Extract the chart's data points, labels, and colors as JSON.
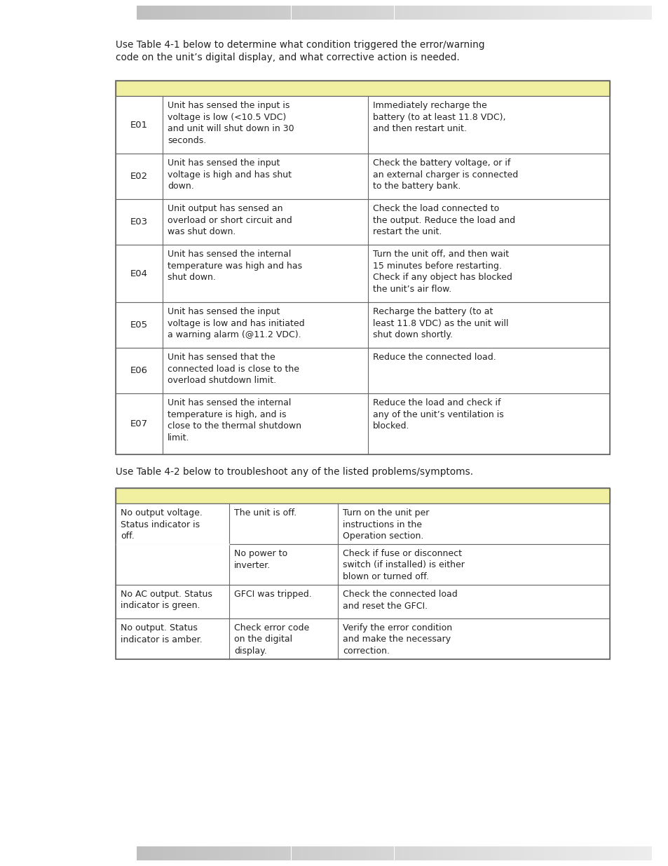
{
  "bg_color": "#ffffff",
  "intro_text1": "Use Table 4-1 below to determine what condition triggered the error/warning\ncode on the unit’s digital display, and what corrective action is needed.",
  "table1_header_color": "#f0f0a0",
  "table1_border_color": "#666666",
  "table1_rows": [
    {
      "code": "E01",
      "condition": "Unit has sensed the input is\nvoltage is low (<10.5 VDC)\nand unit will shut down in 30\nseconds.",
      "action": "Immediately recharge the\nbattery (to at least 11.8 VDC),\nand then restart unit."
    },
    {
      "code": "E02",
      "condition": "Unit has sensed the input\nvoltage is high and has shut\ndown.",
      "action": "Check the battery voltage, or if\nan external charger is connected\nto the battery bank."
    },
    {
      "code": "E03",
      "condition": "Unit output has sensed an\noverload or short circuit and\nwas shut down.",
      "action": "Check the load connected to\nthe output. Reduce the load and\nrestart the unit."
    },
    {
      "code": "E04",
      "condition": "Unit has sensed the internal\ntemperature was high and has\nshut down.",
      "action": "Turn the unit off, and then wait\n15 minutes before restarting.\nCheck if any object has blocked\nthe unit’s air flow."
    },
    {
      "code": "E05",
      "condition": "Unit has sensed the input\nvoltage is low and has initiated\na warning alarm (@11.2 VDC).",
      "action": "Recharge the battery (to at\nleast 11.8 VDC) as the unit will\nshut down shortly."
    },
    {
      "code": "E06",
      "condition": "Unit has sensed that the\nconnected load is close to the\noverload shutdown limit.",
      "action": "Reduce the connected load."
    },
    {
      "code": "E07",
      "condition": "Unit has sensed the internal\ntemperature is high, and is\nclose to the thermal shutdown\nlimit.",
      "action": "Reduce the load and check if\nany of the unit’s ventilation is\nblocked."
    }
  ],
  "between_text": "Use Table 4-2 below to troubleshoot any of the listed problems/symptoms.",
  "table2_header_color": "#f0f0a0",
  "table2_border_color": "#666666",
  "table2_rows": [
    {
      "symptom": "No output voltage.\nStatus indicator is\noff.",
      "cause": "The unit is off.",
      "remedy": "Turn on the unit per\ninstructions in the\nOperation section.",
      "span": true
    },
    {
      "symptom": null,
      "cause": "No power to\ninverter.",
      "remedy": "Check if fuse or disconnect\nswitch (if installed) is either\nblown or turned off.",
      "span": false
    },
    {
      "symptom": "No AC output. Status\nindicator is green.",
      "cause": "GFCI was tripped.",
      "remedy": "Check the connected load\nand reset the GFCI.",
      "span": false
    },
    {
      "symptom": "No output. Status\nindicator is amber.",
      "cause": "Check error code\non the digital\ndisplay.",
      "remedy": "Verify the error condition\nand make the necessary\ncorrection.",
      "span": false
    }
  ]
}
